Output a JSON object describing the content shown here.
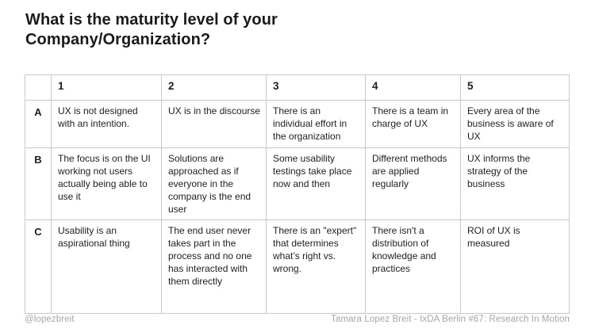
{
  "slide": {
    "title_lines": [
      "What is the maturity level of your",
      "Company/Organization?"
    ]
  },
  "table": {
    "col_headers": [
      "1",
      "2",
      "3",
      "4",
      "5"
    ],
    "rows": [
      {
        "label": "A",
        "cells": [
          "UX is not designed with an intention.",
          "UX is in the discourse",
          "There is an individual effort in the organization",
          "There is a team in charge of UX",
          "Every area of the business is aware of UX"
        ]
      },
      {
        "label": "B",
        "cells": [
          "The focus is on the UI working not users actually being able to use it",
          "Solutions are approached as if everyone in the company is the end user",
          "Some usability testings take place now and then",
          "Different methods are applied regularly",
          "UX informs the strategy of the business"
        ]
      },
      {
        "label": "C",
        "cells": [
          "Usability is an aspirational thing",
          "The end user never takes part in the process and no one has interacted with them directly",
          "There is an \"expert\" that determines what’s right vs. wrong.",
          "There isn't a distribution of knowledge and practices",
          "ROI of UX is measured"
        ]
      }
    ]
  },
  "footer": {
    "left": "@lopezbreit",
    "right": "Tamara Lopez Breit - IxDA Berlin #67: Research In Motion"
  },
  "colors": {
    "text": "#1e1e1e",
    "border": "#c9c9c9",
    "muted_text": "#a6a6a6",
    "background": "#ffffff"
  }
}
